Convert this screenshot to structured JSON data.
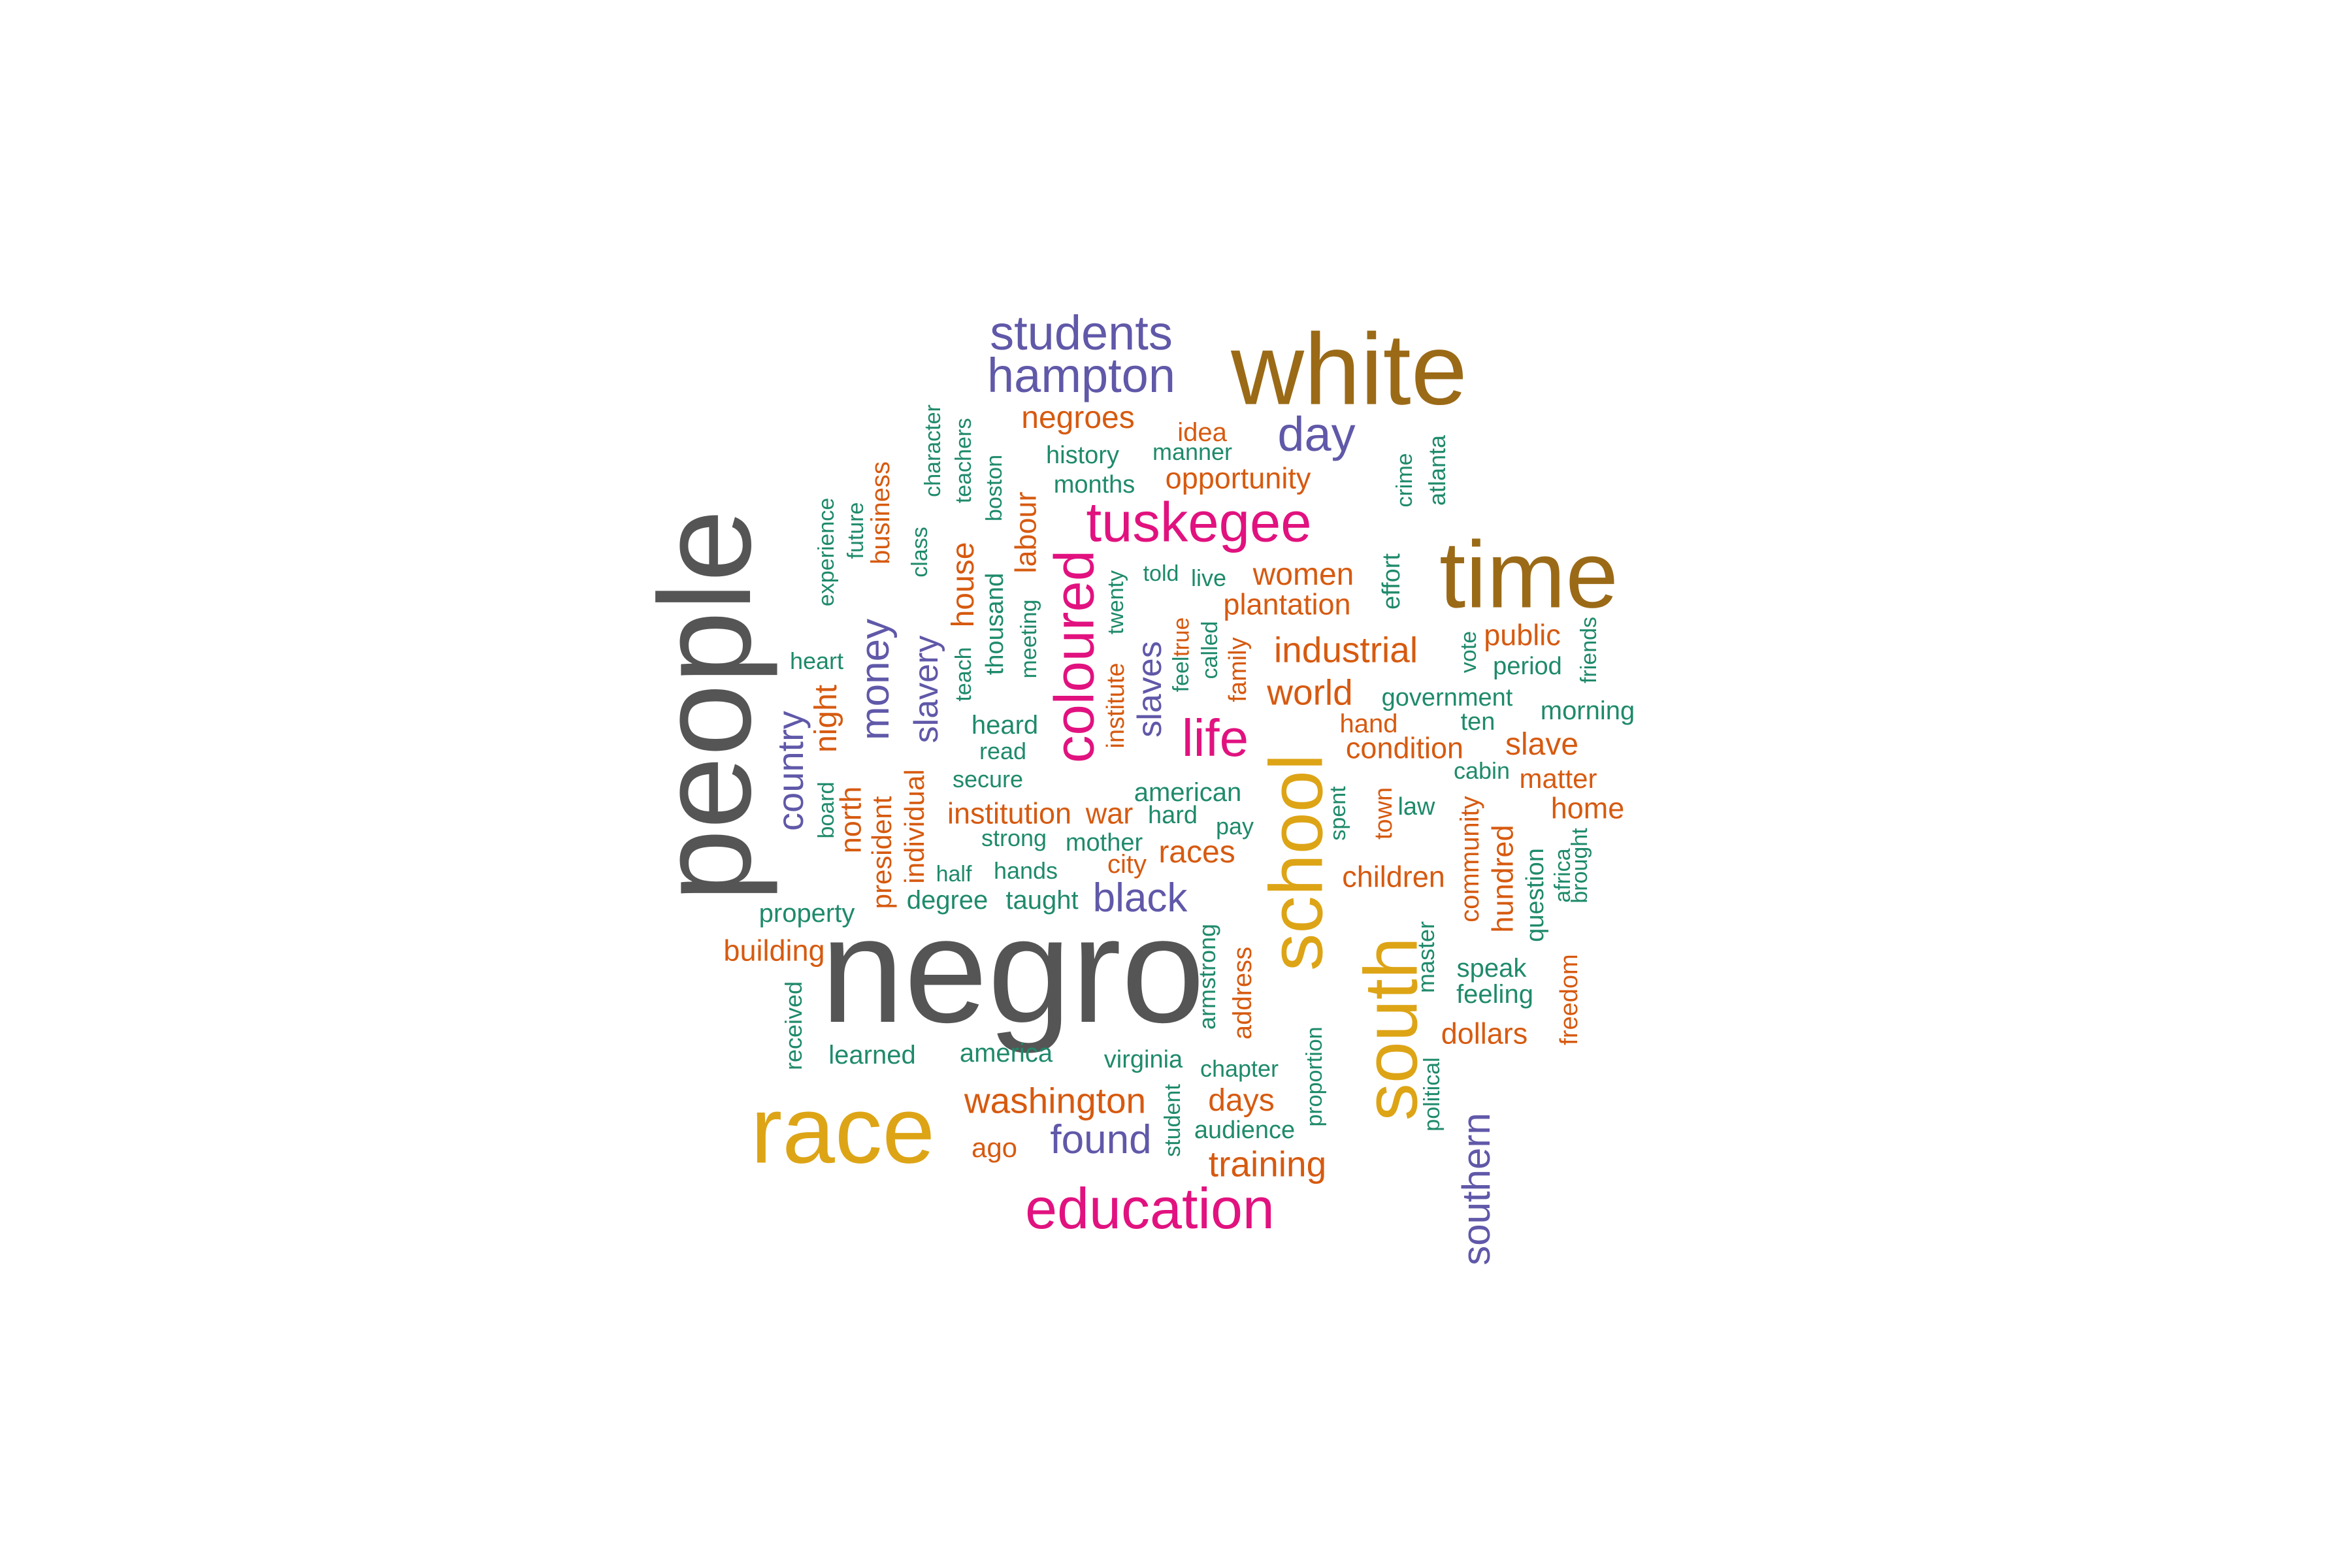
{
  "palette": {
    "gray": "#555555",
    "brown": "#9B6A17",
    "purple": "#6058A8",
    "magenta": "#E1127F",
    "gold": "#DDA416",
    "orange": "#D65A10",
    "green": "#1F8A6B"
  },
  "words": [
    {
      "text": "negro",
      "color": "gray"
    },
    {
      "text": "people",
      "color": "gray"
    },
    {
      "text": "white",
      "color": "brown"
    },
    {
      "text": "time",
      "color": "brown"
    },
    {
      "text": "race",
      "color": "gold"
    },
    {
      "text": "school",
      "color": "gold"
    },
    {
      "text": "south",
      "color": "gold"
    },
    {
      "text": "education",
      "color": "magenta"
    },
    {
      "text": "tuskegee",
      "color": "magenta"
    },
    {
      "text": "coloured",
      "color": "magenta"
    },
    {
      "text": "life",
      "color": "magenta"
    },
    {
      "text": "students",
      "color": "purple"
    },
    {
      "text": "hampton",
      "color": "purple"
    },
    {
      "text": "day",
      "color": "purple"
    },
    {
      "text": "southern",
      "color": "purple"
    },
    {
      "text": "found",
      "color": "purple"
    },
    {
      "text": "black",
      "color": "purple"
    },
    {
      "text": "money",
      "color": "purple"
    },
    {
      "text": "country",
      "color": "purple"
    },
    {
      "text": "slavery",
      "color": "purple"
    },
    {
      "text": "slaves",
      "color": "purple"
    },
    {
      "text": "negroes",
      "color": "orange"
    },
    {
      "text": "idea",
      "color": "orange"
    },
    {
      "text": "opportunity",
      "color": "orange"
    },
    {
      "text": "women",
      "color": "orange"
    },
    {
      "text": "plantation",
      "color": "orange"
    },
    {
      "text": "industrial",
      "color": "orange"
    },
    {
      "text": "world",
      "color": "orange"
    },
    {
      "text": "hand",
      "color": "orange"
    },
    {
      "text": "condition",
      "color": "orange"
    },
    {
      "text": "public",
      "color": "orange"
    },
    {
      "text": "slave",
      "color": "orange"
    },
    {
      "text": "matter",
      "color": "orange"
    },
    {
      "text": "home",
      "color": "orange"
    },
    {
      "text": "washington",
      "color": "orange"
    },
    {
      "text": "days",
      "color": "orange"
    },
    {
      "text": "training",
      "color": "orange"
    },
    {
      "text": "ago",
      "color": "orange"
    },
    {
      "text": "building",
      "color": "orange"
    },
    {
      "text": "institution",
      "color": "orange"
    },
    {
      "text": "war",
      "color": "orange"
    },
    {
      "text": "races",
      "color": "orange"
    },
    {
      "text": "city",
      "color": "orange"
    },
    {
      "text": "children",
      "color": "orange"
    },
    {
      "text": "dollars",
      "color": "orange"
    },
    {
      "text": "night",
      "color": "orange"
    },
    {
      "text": "north",
      "color": "orange"
    },
    {
      "text": "president",
      "color": "orange"
    },
    {
      "text": "individual",
      "color": "orange"
    },
    {
      "text": "business",
      "color": "orange"
    },
    {
      "text": "house",
      "color": "orange"
    },
    {
      "text": "labour",
      "color": "orange"
    },
    {
      "text": "institute",
      "color": "orange"
    },
    {
      "text": "family",
      "color": "orange"
    },
    {
      "text": "true",
      "color": "orange"
    },
    {
      "text": "address",
      "color": "orange"
    },
    {
      "text": "town",
      "color": "orange"
    },
    {
      "text": "hundred",
      "color": "orange"
    },
    {
      "text": "community",
      "color": "orange"
    },
    {
      "text": "freedom",
      "color": "orange"
    },
    {
      "text": "history",
      "color": "green"
    },
    {
      "text": "manner",
      "color": "green"
    },
    {
      "text": "months",
      "color": "green"
    },
    {
      "text": "told",
      "color": "green"
    },
    {
      "text": "live",
      "color": "green"
    },
    {
      "text": "heart",
      "color": "green"
    },
    {
      "text": "heard",
      "color": "green"
    },
    {
      "text": "read",
      "color": "green"
    },
    {
      "text": "secure",
      "color": "green"
    },
    {
      "text": "american",
      "color": "green"
    },
    {
      "text": "hard",
      "color": "green"
    },
    {
      "text": "pay",
      "color": "green"
    },
    {
      "text": "strong",
      "color": "green"
    },
    {
      "text": "mother",
      "color": "green"
    },
    {
      "text": "half",
      "color": "green"
    },
    {
      "text": "hands",
      "color": "green"
    },
    {
      "text": "degree",
      "color": "green"
    },
    {
      "text": "taught",
      "color": "green"
    },
    {
      "text": "property",
      "color": "green"
    },
    {
      "text": "learned",
      "color": "green"
    },
    {
      "text": "america",
      "color": "green"
    },
    {
      "text": "virginia",
      "color": "green"
    },
    {
      "text": "chapter",
      "color": "green"
    },
    {
      "text": "audience",
      "color": "green"
    },
    {
      "text": "government",
      "color": "green"
    },
    {
      "text": "period",
      "color": "green"
    },
    {
      "text": "ten",
      "color": "green"
    },
    {
      "text": "morning",
      "color": "green"
    },
    {
      "text": "cabin",
      "color": "green"
    },
    {
      "text": "law",
      "color": "green"
    },
    {
      "text": "speak",
      "color": "green"
    },
    {
      "text": "feeling",
      "color": "green"
    },
    {
      "text": "character",
      "color": "green"
    },
    {
      "text": "teachers",
      "color": "green"
    },
    {
      "text": "boston",
      "color": "green"
    },
    {
      "text": "class",
      "color": "green"
    },
    {
      "text": "future",
      "color": "green"
    },
    {
      "text": "experience",
      "color": "green"
    },
    {
      "text": "thousand",
      "color": "green"
    },
    {
      "text": "meeting",
      "color": "green"
    },
    {
      "text": "teach",
      "color": "green"
    },
    {
      "text": "twenty",
      "color": "green"
    },
    {
      "text": "feel",
      "color": "green"
    },
    {
      "text": "called",
      "color": "green"
    },
    {
      "text": "effort",
      "color": "green"
    },
    {
      "text": "crime",
      "color": "green"
    },
    {
      "text": "atlanta",
      "color": "green"
    },
    {
      "text": "vote",
      "color": "green"
    },
    {
      "text": "friends",
      "color": "green"
    },
    {
      "text": "board",
      "color": "green"
    },
    {
      "text": "spent",
      "color": "green"
    },
    {
      "text": "armstrong",
      "color": "green"
    },
    {
      "text": "proportion",
      "color": "green"
    },
    {
      "text": "political",
      "color": "green"
    },
    {
      "text": "master",
      "color": "green"
    },
    {
      "text": "question",
      "color": "green"
    },
    {
      "text": "africa",
      "color": "green"
    },
    {
      "text": "brought",
      "color": "green"
    },
    {
      "text": "received",
      "color": "green"
    },
    {
      "text": "student",
      "color": "green"
    }
  ]
}
